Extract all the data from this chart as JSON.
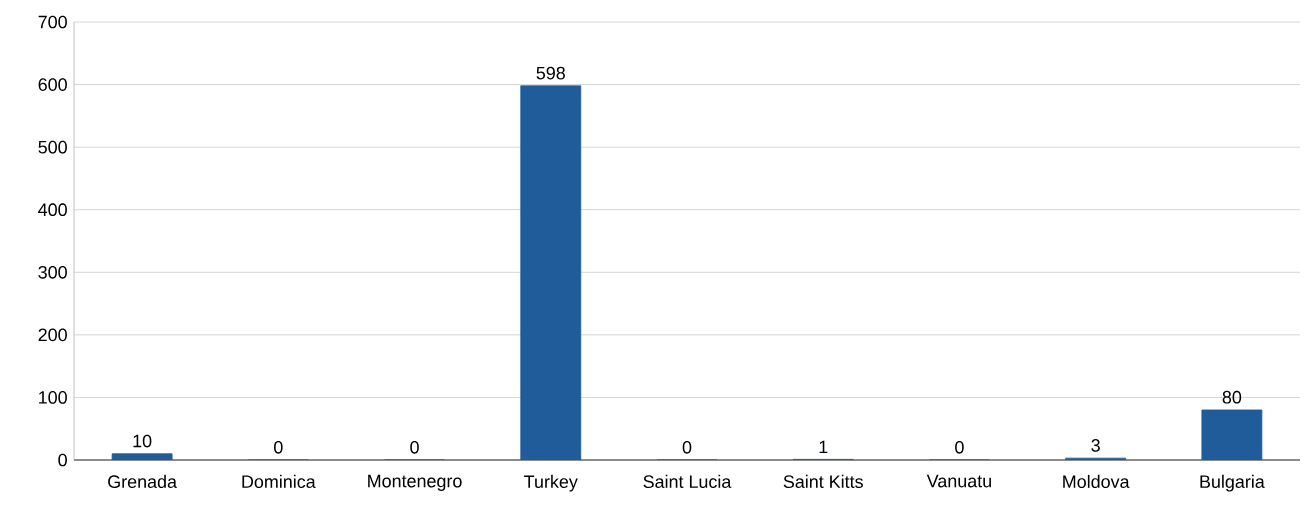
{
  "chart_data": {
    "type": "bar",
    "categories": [
      "Grenada",
      "Dominica",
      "Montenegro",
      "Turkey",
      "Saint Lucia",
      "Saint Kitts",
      "Vanuatu",
      "Moldova",
      "Bulgaria"
    ],
    "values": [
      10,
      0,
      0,
      598,
      0,
      1,
      0,
      3,
      80
    ],
    "color": "#1f5c99",
    "ylim": [
      0,
      700
    ],
    "yticks": [
      0,
      100,
      200,
      300,
      400,
      500,
      600,
      700
    ],
    "grid": "y",
    "data_labels": true
  }
}
